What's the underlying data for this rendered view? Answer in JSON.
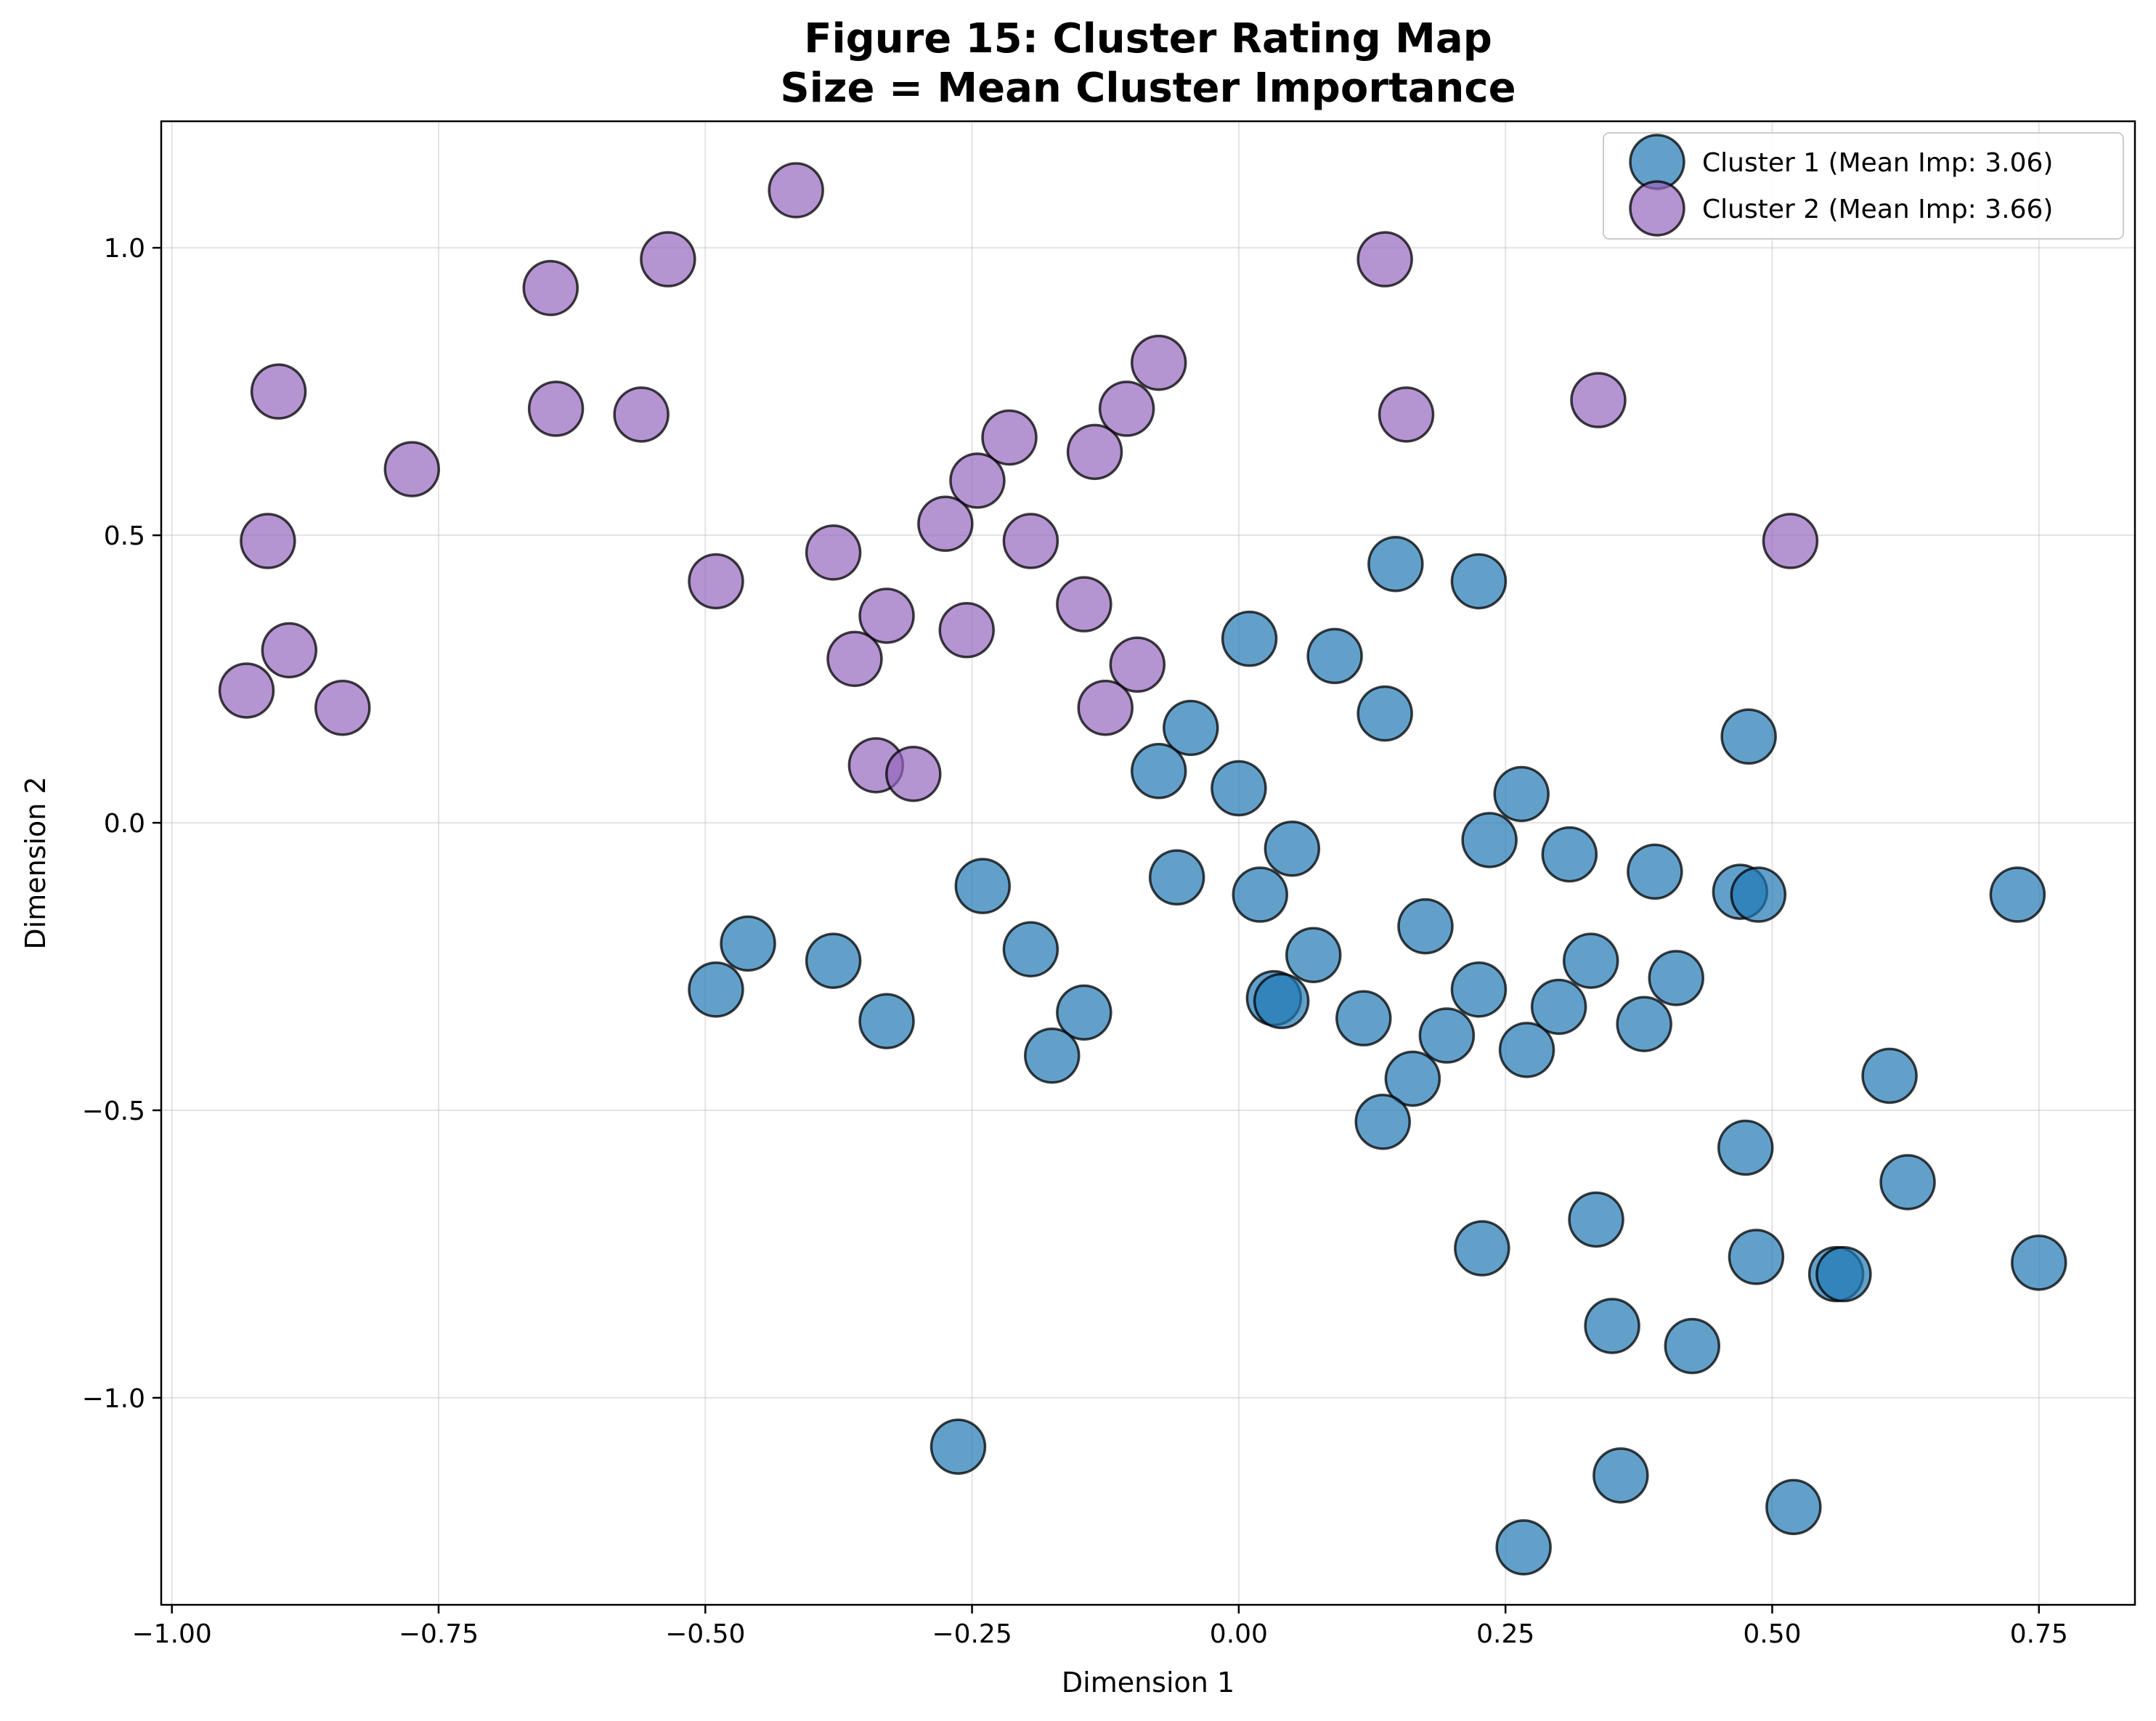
{
  "chart_data": {
    "type": "scatter",
    "title": [
      "Figure 15: Cluster Rating Map",
      "Size = Mean Cluster Importance"
    ],
    "xlabel": "Dimension 1",
    "ylabel": "Dimension 2",
    "xlim": [
      -1.01,
      0.84
    ],
    "ylim": [
      -1.36,
      1.22
    ],
    "xticks": [
      -1.0,
      -0.75,
      -0.5,
      -0.25,
      0.0,
      0.25,
      0.5,
      0.75
    ],
    "xtick_labels": [
      "−1.00",
      "−0.75",
      "−0.50",
      "−0.25",
      "0.00",
      "0.25",
      "0.50",
      "0.75"
    ],
    "yticks": [
      1.0,
      0.5,
      0.0,
      -0.5,
      -1.0
    ],
    "ytick_labels": [
      "1.0",
      "0.5",
      "0.0",
      "−0.5",
      "−1.0"
    ],
    "grid": true,
    "legend_position": "top-right",
    "series": [
      {
        "name": "Cluster 1 (Mean Imp: 3.06)",
        "color": "#1f77b4",
        "points": [
          [
            0.01,
            0.32
          ],
          [
            0.09,
            0.29
          ],
          [
            0.147,
            0.45
          ],
          [
            0.225,
            0.42
          ],
          [
            0.137,
            0.19
          ],
          [
            -0.045,
            0.165
          ],
          [
            -0.075,
            0.09
          ],
          [
            0.0,
            0.06
          ],
          [
            0.265,
            0.05
          ],
          [
            0.478,
            0.15
          ],
          [
            0.235,
            -0.03
          ],
          [
            0.05,
            -0.045
          ],
          [
            0.31,
            -0.055
          ],
          [
            -0.24,
            -0.11
          ],
          [
            -0.058,
            -0.095
          ],
          [
            0.02,
            -0.125
          ],
          [
            0.39,
            -0.085
          ],
          [
            0.47,
            -0.12
          ],
          [
            0.487,
            -0.125
          ],
          [
            0.73,
            -0.125
          ],
          [
            0.175,
            -0.18
          ],
          [
            -0.46,
            -0.21
          ],
          [
            -0.38,
            -0.24
          ],
          [
            -0.195,
            -0.22
          ],
          [
            0.07,
            -0.23
          ],
          [
            -0.49,
            -0.29
          ],
          [
            0.033,
            -0.305
          ],
          [
            0.04,
            -0.31
          ],
          [
            0.225,
            -0.29
          ],
          [
            0.33,
            -0.24
          ],
          [
            0.41,
            -0.27
          ],
          [
            0.3,
            -0.32
          ],
          [
            -0.33,
            -0.345
          ],
          [
            -0.145,
            -0.33
          ],
          [
            0.117,
            -0.34
          ],
          [
            0.195,
            -0.37
          ],
          [
            0.38,
            -0.35
          ],
          [
            -0.175,
            -0.405
          ],
          [
            0.27,
            -0.395
          ],
          [
            0.163,
            -0.445
          ],
          [
            0.61,
            -0.44
          ],
          [
            0.135,
            -0.52
          ],
          [
            0.475,
            -0.565
          ],
          [
            0.627,
            -0.625
          ],
          [
            0.335,
            -0.69
          ],
          [
            0.228,
            -0.74
          ],
          [
            0.485,
            -0.755
          ],
          [
            0.56,
            -0.785
          ],
          [
            0.567,
            -0.785
          ],
          [
            0.75,
            -0.765
          ],
          [
            0.35,
            -0.875
          ],
          [
            0.425,
            -0.91
          ],
          [
            -0.263,
            -1.085
          ],
          [
            0.358,
            -1.135
          ],
          [
            0.52,
            -1.19
          ],
          [
            0.267,
            -1.26
          ]
        ]
      },
      {
        "name": "Cluster 2 (Mean Imp: 3.66)",
        "color": "#9467bd",
        "points": [
          [
            -0.415,
            1.1
          ],
          [
            -0.535,
            0.98
          ],
          [
            -0.645,
            0.93
          ],
          [
            0.137,
            0.98
          ],
          [
            -0.9,
            0.75
          ],
          [
            -0.64,
            0.72
          ],
          [
            -0.56,
            0.71
          ],
          [
            -0.775,
            0.615
          ],
          [
            -0.075,
            0.8
          ],
          [
            -0.105,
            0.72
          ],
          [
            0.157,
            0.71
          ],
          [
            0.337,
            0.735
          ],
          [
            -0.215,
            0.67
          ],
          [
            -0.135,
            0.645
          ],
          [
            -0.245,
            0.595
          ],
          [
            -0.91,
            0.49
          ],
          [
            -0.275,
            0.52
          ],
          [
            -0.195,
            0.49
          ],
          [
            -0.38,
            0.47
          ],
          [
            0.517,
            0.49
          ],
          [
            -0.49,
            0.42
          ],
          [
            -0.145,
            0.38
          ],
          [
            -0.33,
            0.36
          ],
          [
            -0.89,
            0.3
          ],
          [
            -0.36,
            0.285
          ],
          [
            -0.255,
            0.335
          ],
          [
            -0.095,
            0.275
          ],
          [
            -0.93,
            0.23
          ],
          [
            -0.84,
            0.2
          ],
          [
            -0.125,
            0.2
          ],
          [
            -0.34,
            0.1
          ],
          [
            -0.305,
            0.085
          ]
        ]
      }
    ]
  }
}
